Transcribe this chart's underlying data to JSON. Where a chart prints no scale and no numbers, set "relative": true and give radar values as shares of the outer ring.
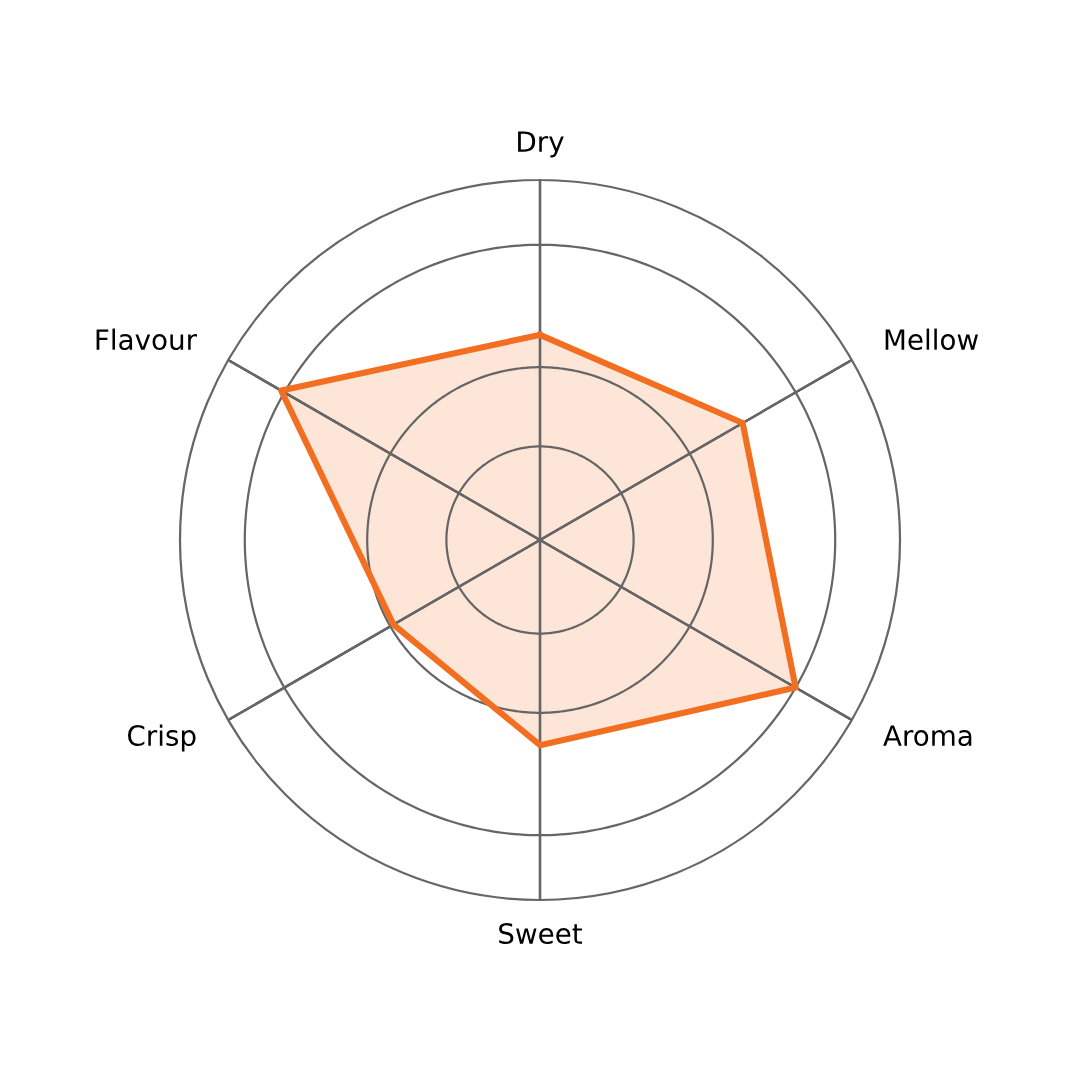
{
  "chart_data": {
    "type": "radar",
    "relative": true,
    "categories": [
      "Dry",
      "Mellow",
      "Aroma",
      "Sweet",
      "Crisp",
      "Flavour"
    ],
    "series": [
      {
        "color": "#f26f21",
        "values": [
          0.57,
          0.65,
          0.82,
          0.57,
          0.47,
          0.83
        ]
      }
    ],
    "grid": true
  }
}
